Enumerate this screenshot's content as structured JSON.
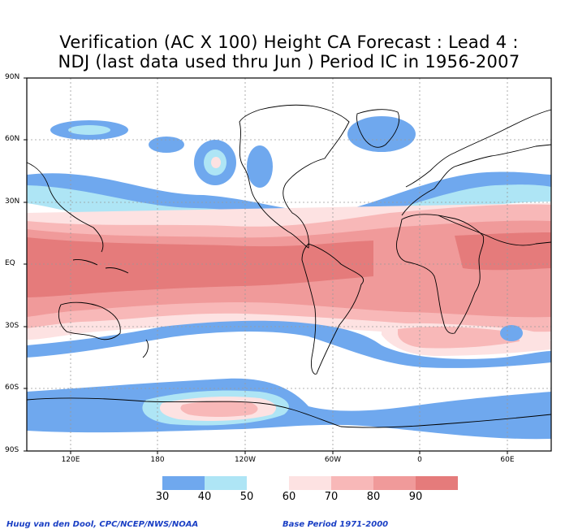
{
  "title": {
    "line1": "Verification (AC X 100) Height CA Forecast : Lead 4 :",
    "line2": "NDJ (last data used thru Jun ) Period IC in 1956-2007"
  },
  "lat_labels": [
    "90N",
    "60N",
    "30N",
    "EQ",
    "30S",
    "60S",
    "90S"
  ],
  "lon_labels": [
    "120E",
    "180",
    "120W",
    "60W",
    "0",
    "60E"
  ],
  "colorbar": {
    "colors": [
      "#6fa8ee",
      "#aee5f5",
      "#ffffff",
      "#fde2e2",
      "#f8b8b8",
      "#f09a9a",
      "#e57b7b",
      "#dd5f5f"
    ],
    "labels": [
      "30",
      "40",
      "50",
      "60",
      "70",
      "80",
      "90"
    ]
  },
  "colors": {
    "c30": "#6fa8ee",
    "c40": "#aee5f5",
    "c60": "#fde2e2",
    "c70": "#f8b8b8",
    "c80": "#f09a9a",
    "c90": "#e57b7b"
  },
  "footer": {
    "left": "Huug van den Dool, CPC/NCEP/NWS/NOAA",
    "right": "Base Period 1971-2000"
  }
}
